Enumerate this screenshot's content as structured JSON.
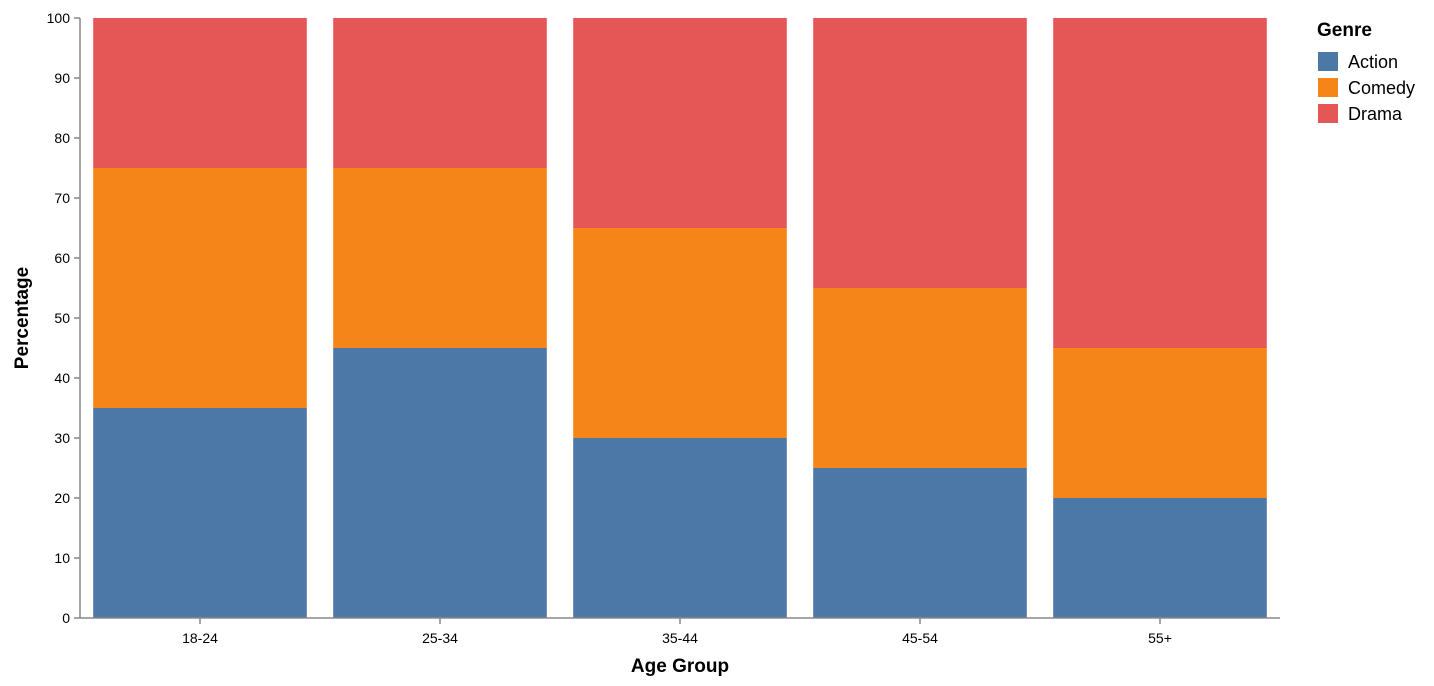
{
  "chart_data": {
    "type": "bar",
    "stacked": true,
    "xlabel": "Age Group",
    "ylabel": "Percentage",
    "ylim": [
      0,
      100
    ],
    "yticks": [
      0,
      10,
      20,
      30,
      40,
      50,
      60,
      70,
      80,
      90,
      100
    ],
    "categories": [
      "18-24",
      "25-34",
      "35-44",
      "45-54",
      "55+"
    ],
    "series": [
      {
        "name": "Action",
        "color": "#4c78a8",
        "values": [
          35,
          45,
          30,
          25,
          20
        ]
      },
      {
        "name": "Comedy",
        "color": "#f58518",
        "values": [
          40,
          30,
          35,
          30,
          25
        ]
      },
      {
        "name": "Drama",
        "color": "#e45756",
        "values": [
          25,
          25,
          35,
          45,
          55
        ]
      }
    ],
    "legend": {
      "title": "Genre",
      "position": "top-right"
    },
    "grid": false
  }
}
